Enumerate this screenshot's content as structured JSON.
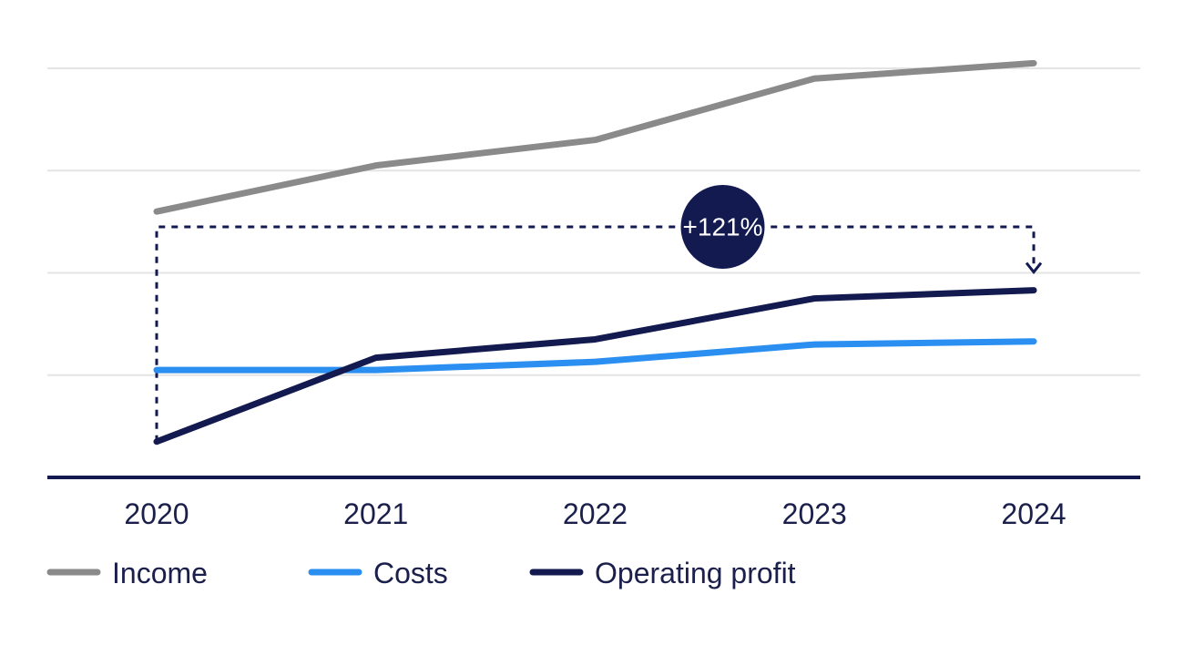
{
  "chart_data": {
    "type": "line",
    "categories": [
      "2020",
      "2021",
      "2022",
      "2023",
      "2024"
    ],
    "series": [
      {
        "name": "Income",
        "color": "#8a8a8a",
        "values": [
          2.6,
          3.05,
          3.3,
          3.9,
          4.05
        ]
      },
      {
        "name": "Costs",
        "color": "#2a8ff0",
        "values": [
          1.05,
          1.05,
          1.13,
          1.3,
          1.33
        ]
      },
      {
        "name": "Operating profit",
        "color": "#131a4f",
        "values": [
          0.35,
          1.17,
          1.35,
          1.75,
          1.83
        ]
      }
    ],
    "ylim": [
      0,
      4
    ],
    "grid": true,
    "y_axis_labels": false,
    "legend_position": "bottom-left",
    "annotation": {
      "label": "+121%",
      "from_category": "2020",
      "to_category": "2024",
      "level": 2.45,
      "badge_color": "#131a4f"
    },
    "axis_color": "#131a4f",
    "grid_color": "#e4e4e4"
  }
}
